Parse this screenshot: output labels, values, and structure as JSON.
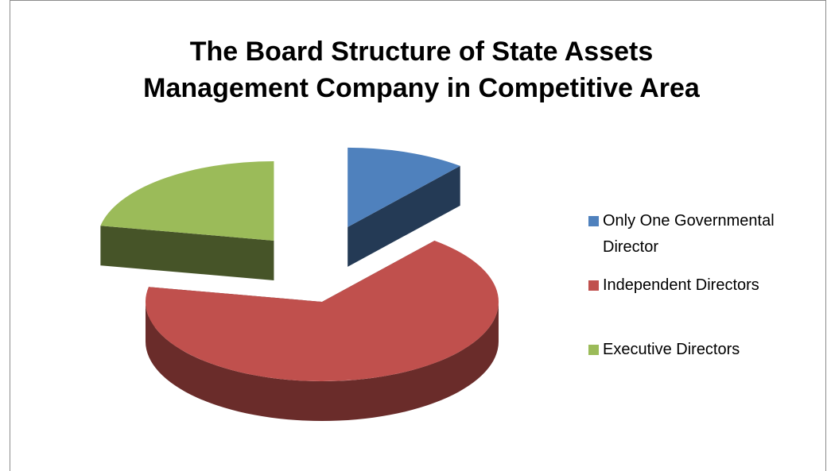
{
  "chart_data": {
    "type": "pie3d",
    "title": "The Board Structure of State Assets\nManagement Company in Competitive Area",
    "categories": [
      "Only One Governmental Director",
      "Independent Directors",
      "Executive Directors"
    ],
    "values": [
      11,
      67,
      22
    ],
    "colors": [
      "#4f81bd",
      "#c0504d",
      "#9bbb59"
    ],
    "exploded": [
      true,
      false,
      true
    ],
    "legend": "right"
  }
}
